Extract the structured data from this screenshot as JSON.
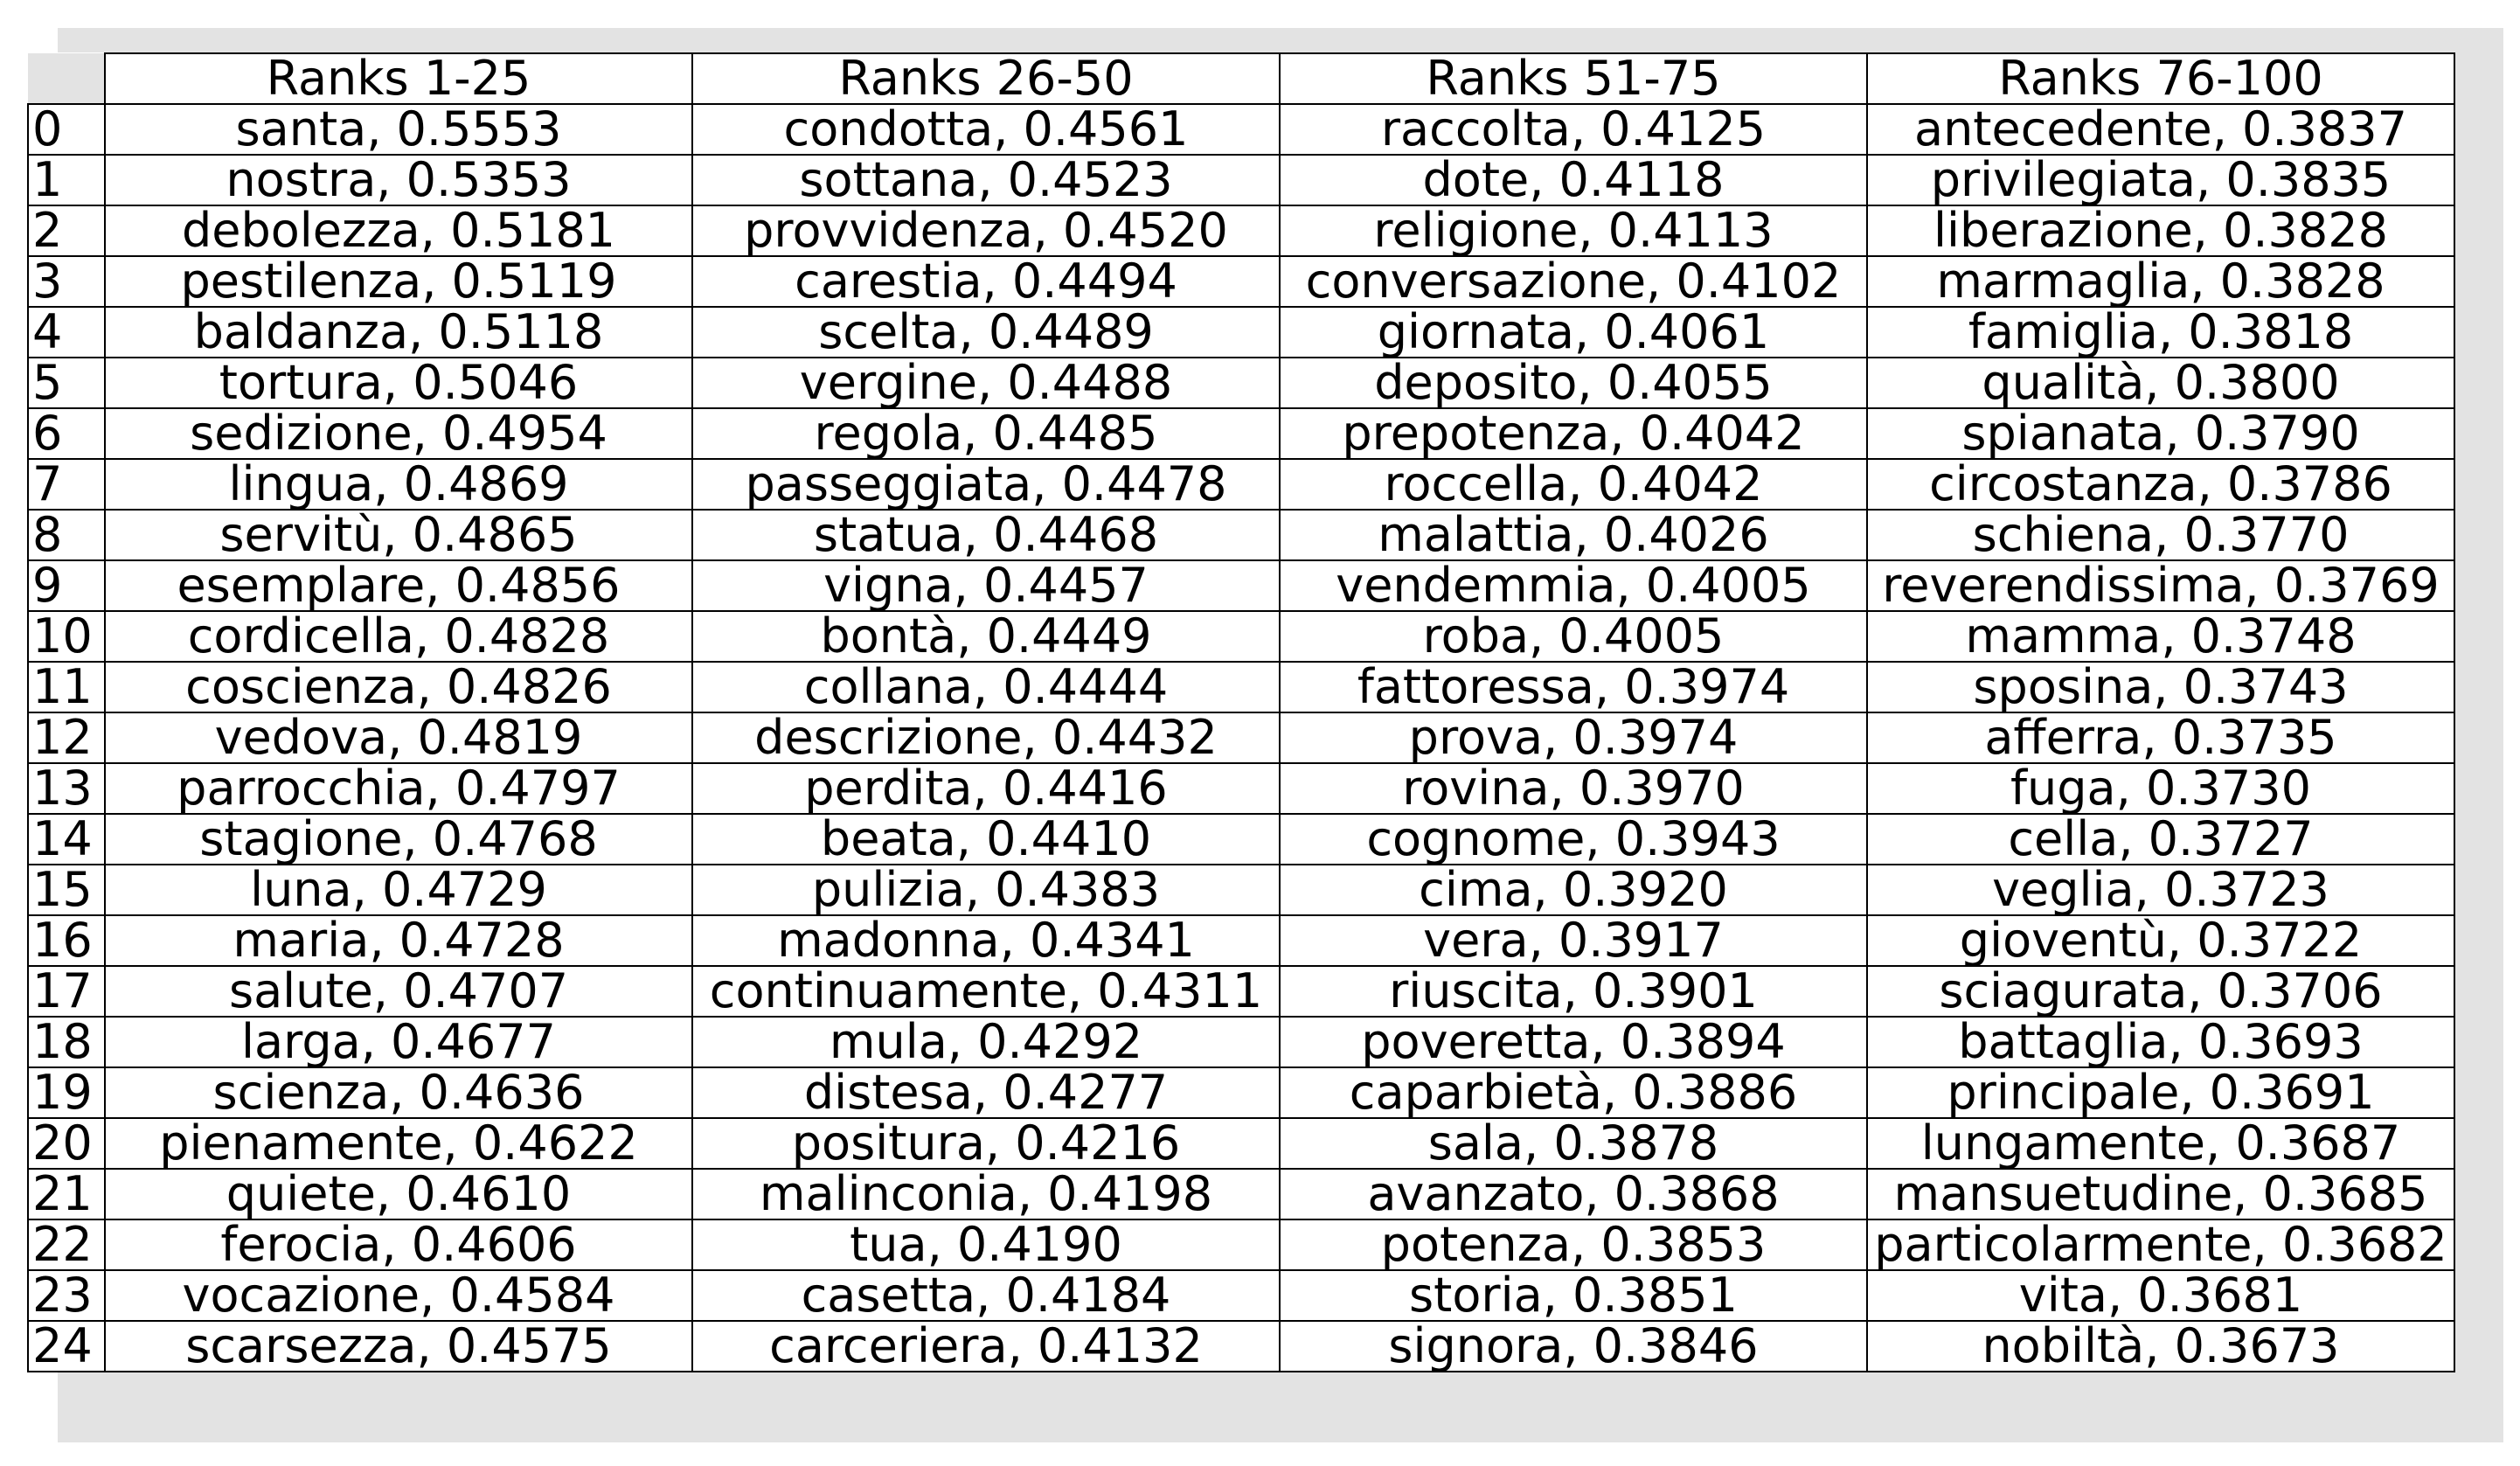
{
  "chart_data": {
    "type": "table",
    "columns": [
      "Ranks 1-25",
      "Ranks 26-50",
      "Ranks 51-75",
      "Ranks 76-100"
    ],
    "row_index": [
      "0",
      "1",
      "2",
      "3",
      "4",
      "5",
      "6",
      "7",
      "8",
      "9",
      "10",
      "11",
      "12",
      "13",
      "14",
      "15",
      "16",
      "17",
      "18",
      "19",
      "20",
      "21",
      "22",
      "23",
      "24"
    ],
    "rows": [
      [
        "santa, 0.5553",
        "condotta, 0.4561",
        "raccolta, 0.4125",
        "antecedente, 0.3837"
      ],
      [
        "nostra, 0.5353",
        "sottana, 0.4523",
        "dote, 0.4118",
        "privilegiata, 0.3835"
      ],
      [
        "debolezza, 0.5181",
        "provvidenza, 0.4520",
        "religione, 0.4113",
        "liberazione, 0.3828"
      ],
      [
        "pestilenza, 0.5119",
        "carestia, 0.4494",
        "conversazione, 0.4102",
        "marmaglia, 0.3828"
      ],
      [
        "baldanza, 0.5118",
        "scelta, 0.4489",
        "giornata, 0.4061",
        "famiglia, 0.3818"
      ],
      [
        "tortura, 0.5046",
        "vergine, 0.4488",
        "deposito, 0.4055",
        "qualità, 0.3800"
      ],
      [
        "sedizione, 0.4954",
        "regola, 0.4485",
        "prepotenza, 0.4042",
        "spianata, 0.3790"
      ],
      [
        "lingua, 0.4869",
        "passeggiata, 0.4478",
        "roccella, 0.4042",
        "circostanza, 0.3786"
      ],
      [
        "servitù, 0.4865",
        "statua, 0.4468",
        "malattia, 0.4026",
        "schiena, 0.3770"
      ],
      [
        "esemplare, 0.4856",
        "vigna, 0.4457",
        "vendemmia, 0.4005",
        "reverendissima, 0.3769"
      ],
      [
        "cordicella, 0.4828",
        "bontà, 0.4449",
        "roba, 0.4005",
        "mamma, 0.3748"
      ],
      [
        "coscienza, 0.4826",
        "collana, 0.4444",
        "fattoressa, 0.3974",
        "sposina, 0.3743"
      ],
      [
        "vedova, 0.4819",
        "descrizione, 0.4432",
        "prova, 0.3974",
        "afferra, 0.3735"
      ],
      [
        "parrocchia, 0.4797",
        "perdita, 0.4416",
        "rovina, 0.3970",
        "fuga, 0.3730"
      ],
      [
        "stagione, 0.4768",
        "beata, 0.4410",
        "cognome, 0.3943",
        "cella, 0.3727"
      ],
      [
        "luna, 0.4729",
        "pulizia, 0.4383",
        "cima, 0.3920",
        "veglia, 0.3723"
      ],
      [
        "maria, 0.4728",
        "madonna, 0.4341",
        "vera, 0.3917",
        "gioventù, 0.3722"
      ],
      [
        "salute, 0.4707",
        "continuamente, 0.4311",
        "riuscita, 0.3901",
        "sciagurata, 0.3706"
      ],
      [
        "larga, 0.4677",
        "mula, 0.4292",
        "poveretta, 0.3894",
        "battaglia, 0.3693"
      ],
      [
        "scienza, 0.4636",
        "distesa, 0.4277",
        "caparbietà, 0.3886",
        "principale, 0.3691"
      ],
      [
        "pienamente, 0.4622",
        "positura, 0.4216",
        "sala, 0.3878",
        "lungamente, 0.3687"
      ],
      [
        "quiete, 0.4610",
        "malinconia, 0.4198",
        "avanzato, 0.3868",
        "mansuetudine, 0.3685"
      ],
      [
        "ferocia, 0.4606",
        "tua, 0.4190",
        "potenza, 0.3853",
        "particolarmente, 0.3682"
      ],
      [
        "vocazione, 0.4584",
        "casetta, 0.4184",
        "storia, 0.3851",
        "vita, 0.3681"
      ],
      [
        "scarsezza, 0.4575",
        "carceriera, 0.4132",
        "signora, 0.3846",
        "nobiltà, 0.3673"
      ]
    ]
  }
}
